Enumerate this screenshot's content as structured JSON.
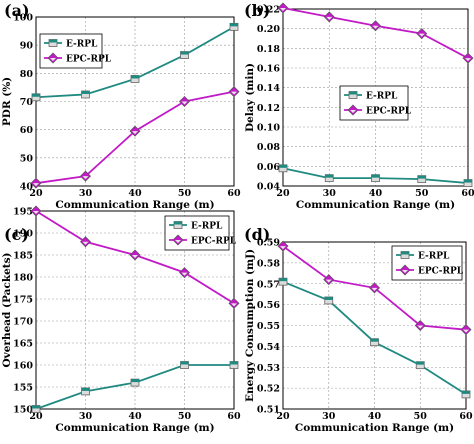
{
  "colors": {
    "erpl": "#1f8a80",
    "epc": "#c21ac7"
  },
  "chart_data": [
    {
      "panel": "(a)",
      "type": "line",
      "xlabel": "Communication Range (m)",
      "ylabel": "PDR (%)",
      "xlim": [
        20,
        60
      ],
      "ylim": [
        40,
        100
      ],
      "xticks": [
        20,
        30,
        40,
        50,
        60
      ],
      "yticks": [
        40,
        50,
        60,
        70,
        80,
        90,
        100
      ],
      "legend": "top-left",
      "grid": true,
      "x": [
        20,
        30,
        40,
        50,
        60
      ],
      "series": [
        {
          "name": "E-RPL",
          "values": [
            71.5,
            72.5,
            78,
            86.5,
            96.5
          ]
        },
        {
          "name": "EPC-RPL",
          "values": [
            41,
            43.5,
            59.5,
            70,
            73.5
          ]
        }
      ]
    },
    {
      "panel": "(b)",
      "type": "line",
      "xlabel": "Communication Range (m)",
      "ylabel": "Delay (min)",
      "xlim": [
        20,
        60
      ],
      "ylim": [
        0.04,
        0.22
      ],
      "xticks": [
        20,
        30,
        40,
        50,
        60
      ],
      "yticks": [
        "0.04",
        "0.06",
        "0.08",
        "0.10",
        "0.12",
        "0.14",
        "0.16",
        "0.18",
        "0.20",
        "0.22"
      ],
      "legend": "center-right",
      "grid": true,
      "x": [
        20,
        30,
        40,
        50,
        60
      ],
      "series": [
        {
          "name": "E-RPL",
          "values": [
            0.058,
            0.048,
            0.048,
            0.047,
            0.043
          ]
        },
        {
          "name": "EPC-RPL",
          "values": [
            0.221,
            0.212,
            0.203,
            0.195,
            0.17
          ]
        }
      ]
    },
    {
      "panel": "(c)",
      "type": "line",
      "xlabel": "Communication Range (m)",
      "ylabel": "Overhead (Packets)",
      "xlim": [
        20,
        60
      ],
      "ylim": [
        150,
        195
      ],
      "xticks": [
        20,
        30,
        40,
        50,
        60
      ],
      "yticks": [
        150,
        155,
        160,
        165,
        170,
        175,
        180,
        185,
        190,
        195
      ],
      "legend": "top-right",
      "grid": true,
      "x": [
        20,
        30,
        40,
        50,
        60
      ],
      "series": [
        {
          "name": "E-RPL",
          "values": [
            150,
            154,
            156,
            160,
            160
          ]
        },
        {
          "name": "EPC-RPL",
          "values": [
            195,
            188,
            185,
            181,
            174
          ]
        }
      ]
    },
    {
      "panel": "(d)",
      "type": "line",
      "xlabel": "Communication Range (m)",
      "ylabel": "Energy Consumption (mJ)",
      "xlim": [
        20,
        60
      ],
      "ylim": [
        0.51,
        0.59
      ],
      "xticks": [
        20,
        30,
        40,
        50,
        60
      ],
      "yticks": [
        "0.51",
        "0.52",
        "0.53",
        "0.54",
        "0.55",
        "0.56",
        "0.57",
        "0.58",
        "0.59"
      ],
      "legend": "top-right",
      "grid": true,
      "x": [
        20,
        30,
        40,
        50,
        60
      ],
      "series": [
        {
          "name": "E-RPL",
          "values": [
            0.571,
            0.562,
            0.542,
            0.531,
            0.517
          ]
        },
        {
          "name": "EPC-RPL",
          "values": [
            0.588,
            0.572,
            0.568,
            0.55,
            0.548
          ]
        }
      ]
    }
  ]
}
